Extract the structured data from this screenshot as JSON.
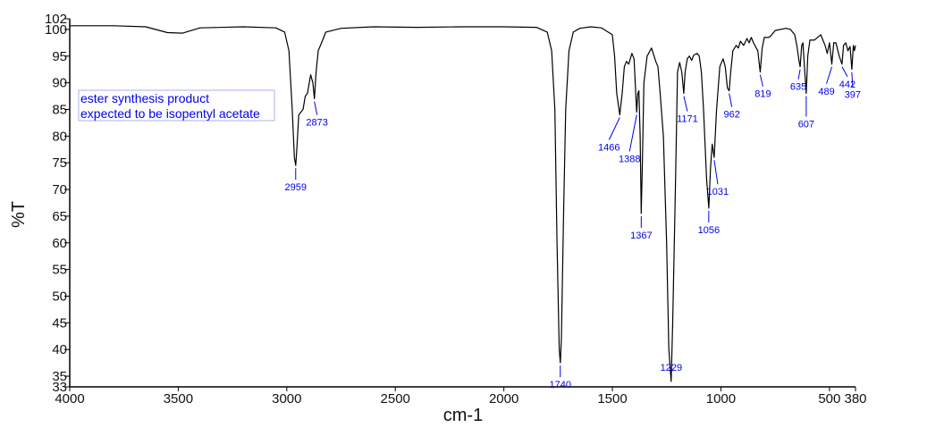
{
  "chart_data": {
    "type": "line",
    "xlabel": "cm-1",
    "ylabel": "%T",
    "xlim": [
      4000,
      380
    ],
    "ylim": [
      33,
      102
    ],
    "x_reversed": true,
    "grid": false,
    "xticks": [
      4000,
      3500,
      3000,
      2500,
      2000,
      1500,
      1000,
      500,
      380
    ],
    "yticks": [
      102,
      100,
      95,
      90,
      85,
      80,
      75,
      70,
      65,
      60,
      55,
      50,
      45,
      40,
      35,
      33
    ],
    "annotation": [
      "ester synthesis product",
      "expected to be isopentyl acetate"
    ],
    "colors": {
      "line": "#000000",
      "labels": "#0000ee",
      "note_border": "#aab0ee"
    },
    "peaks": [
      {
        "label": "2959",
        "x": 2959,
        "y": 74.5
      },
      {
        "label": "2873",
        "x": 2873,
        "y": 87
      },
      {
        "label": "1740",
        "x": 1740,
        "y": 37.5
      },
      {
        "label": "1466",
        "x": 1466,
        "y": 84
      },
      {
        "label": "1388",
        "x": 1388,
        "y": 84.5
      },
      {
        "label": "1367",
        "x": 1367,
        "y": 65.5
      },
      {
        "label": "1229",
        "x": 1229,
        "y": 34
      },
      {
        "label": "1171",
        "x": 1171,
        "y": 88
      },
      {
        "label": "1056",
        "x": 1056,
        "y": 66.5
      },
      {
        "label": "1031",
        "x": 1031,
        "y": 76
      },
      {
        "label": "962",
        "x": 962,
        "y": 88.5
      },
      {
        "label": "819",
        "x": 819,
        "y": 92
      },
      {
        "label": "635",
        "x": 635,
        "y": 93
      },
      {
        "label": "607",
        "x": 607,
        "y": 88
      },
      {
        "label": "489",
        "x": 489,
        "y": 93.5
      },
      {
        "label": "442",
        "x": 442,
        "y": 93.5
      },
      {
        "label": "397",
        "x": 397,
        "y": 92.5
      }
    ],
    "series": [
      {
        "points": [
          [
            4000,
            100.7
          ],
          [
            3800,
            100.7
          ],
          [
            3650,
            100.5
          ],
          [
            3550,
            99.4
          ],
          [
            3480,
            99.3
          ],
          [
            3400,
            100.3
          ],
          [
            3200,
            100.5
          ],
          [
            3050,
            100.3
          ],
          [
            3010,
            99.5
          ],
          [
            2990,
            96
          ],
          [
            2975,
            85
          ],
          [
            2965,
            76
          ],
          [
            2959,
            74.5
          ],
          [
            2953,
            78
          ],
          [
            2945,
            84
          ],
          [
            2935,
            84.5
          ],
          [
            2925,
            85
          ],
          [
            2915,
            87.5
          ],
          [
            2905,
            88
          ],
          [
            2890,
            91.5
          ],
          [
            2880,
            90
          ],
          [
            2873,
            87
          ],
          [
            2865,
            92
          ],
          [
            2855,
            96
          ],
          [
            2840,
            97.5
          ],
          [
            2820,
            99.5
          ],
          [
            2750,
            100.2
          ],
          [
            2600,
            100.5
          ],
          [
            2400,
            100.4
          ],
          [
            2200,
            100.5
          ],
          [
            2000,
            100.5
          ],
          [
            1850,
            100.4
          ],
          [
            1800,
            99.5
          ],
          [
            1780,
            96
          ],
          [
            1765,
            85
          ],
          [
            1755,
            60
          ],
          [
            1745,
            40
          ],
          [
            1740,
            37.5
          ],
          [
            1735,
            42
          ],
          [
            1725,
            65
          ],
          [
            1715,
            85
          ],
          [
            1700,
            96
          ],
          [
            1680,
            99.5
          ],
          [
            1650,
            100.2
          ],
          [
            1600,
            100.5
          ],
          [
            1550,
            100.3
          ],
          [
            1500,
            99
          ],
          [
            1490,
            95
          ],
          [
            1480,
            88
          ],
          [
            1466,
            84
          ],
          [
            1455,
            88
          ],
          [
            1445,
            93
          ],
          [
            1435,
            94
          ],
          [
            1425,
            93.5
          ],
          [
            1410,
            95.5
          ],
          [
            1400,
            94.5
          ],
          [
            1388,
            84.5
          ],
          [
            1383,
            88
          ],
          [
            1378,
            88.5
          ],
          [
            1372,
            80
          ],
          [
            1367,
            65.5
          ],
          [
            1362,
            75
          ],
          [
            1355,
            90
          ],
          [
            1340,
            95
          ],
          [
            1320,
            96.5
          ],
          [
            1300,
            94
          ],
          [
            1290,
            93
          ],
          [
            1280,
            88
          ],
          [
            1265,
            80
          ],
          [
            1250,
            60
          ],
          [
            1240,
            40
          ],
          [
            1229,
            34
          ],
          [
            1222,
            45
          ],
          [
            1210,
            70
          ],
          [
            1200,
            92
          ],
          [
            1190,
            93.8
          ],
          [
            1180,
            92
          ],
          [
            1171,
            88
          ],
          [
            1165,
            92
          ],
          [
            1155,
            94.5
          ],
          [
            1145,
            95
          ],
          [
            1135,
            94.2
          ],
          [
            1125,
            95.2
          ],
          [
            1110,
            95.5
          ],
          [
            1100,
            95
          ],
          [
            1090,
            92
          ],
          [
            1080,
            85
          ],
          [
            1066,
            72
          ],
          [
            1056,
            66.5
          ],
          [
            1048,
            74
          ],
          [
            1040,
            78.5
          ],
          [
            1031,
            76
          ],
          [
            1020,
            85
          ],
          [
            1005,
            93
          ],
          [
            990,
            94.5
          ],
          [
            980,
            93
          ],
          [
            970,
            89
          ],
          [
            962,
            88.5
          ],
          [
            955,
            92
          ],
          [
            945,
            96
          ],
          [
            930,
            97
          ],
          [
            920,
            96.5
          ],
          [
            910,
            97.8
          ],
          [
            895,
            97
          ],
          [
            880,
            98.3
          ],
          [
            870,
            97.5
          ],
          [
            860,
            98.5
          ],
          [
            850,
            97.5
          ],
          [
            830,
            96
          ],
          [
            819,
            92
          ],
          [
            810,
            96.5
          ],
          [
            800,
            98.5
          ],
          [
            780,
            98.5
          ],
          [
            770,
            98.8
          ],
          [
            750,
            99.8
          ],
          [
            700,
            100.2
          ],
          [
            680,
            100
          ],
          [
            660,
            99
          ],
          [
            650,
            97
          ],
          [
            640,
            94
          ],
          [
            635,
            93
          ],
          [
            628,
            97
          ],
          [
            622,
            97.5
          ],
          [
            615,
            93
          ],
          [
            607,
            88
          ],
          [
            600,
            95
          ],
          [
            590,
            98
          ],
          [
            570,
            98
          ],
          [
            540,
            99
          ],
          [
            520,
            97
          ],
          [
            510,
            95.5
          ],
          [
            500,
            97.5
          ],
          [
            489,
            93.5
          ],
          [
            480,
            97.5
          ],
          [
            470,
            97.5
          ],
          [
            455,
            95
          ],
          [
            442,
            93.5
          ],
          [
            435,
            97
          ],
          [
            425,
            97.5
          ],
          [
            415,
            96
          ],
          [
            405,
            96.8
          ],
          [
            397,
            92.5
          ],
          [
            390,
            97
          ],
          [
            385,
            96
          ],
          [
            380,
            97
          ]
        ]
      }
    ]
  }
}
